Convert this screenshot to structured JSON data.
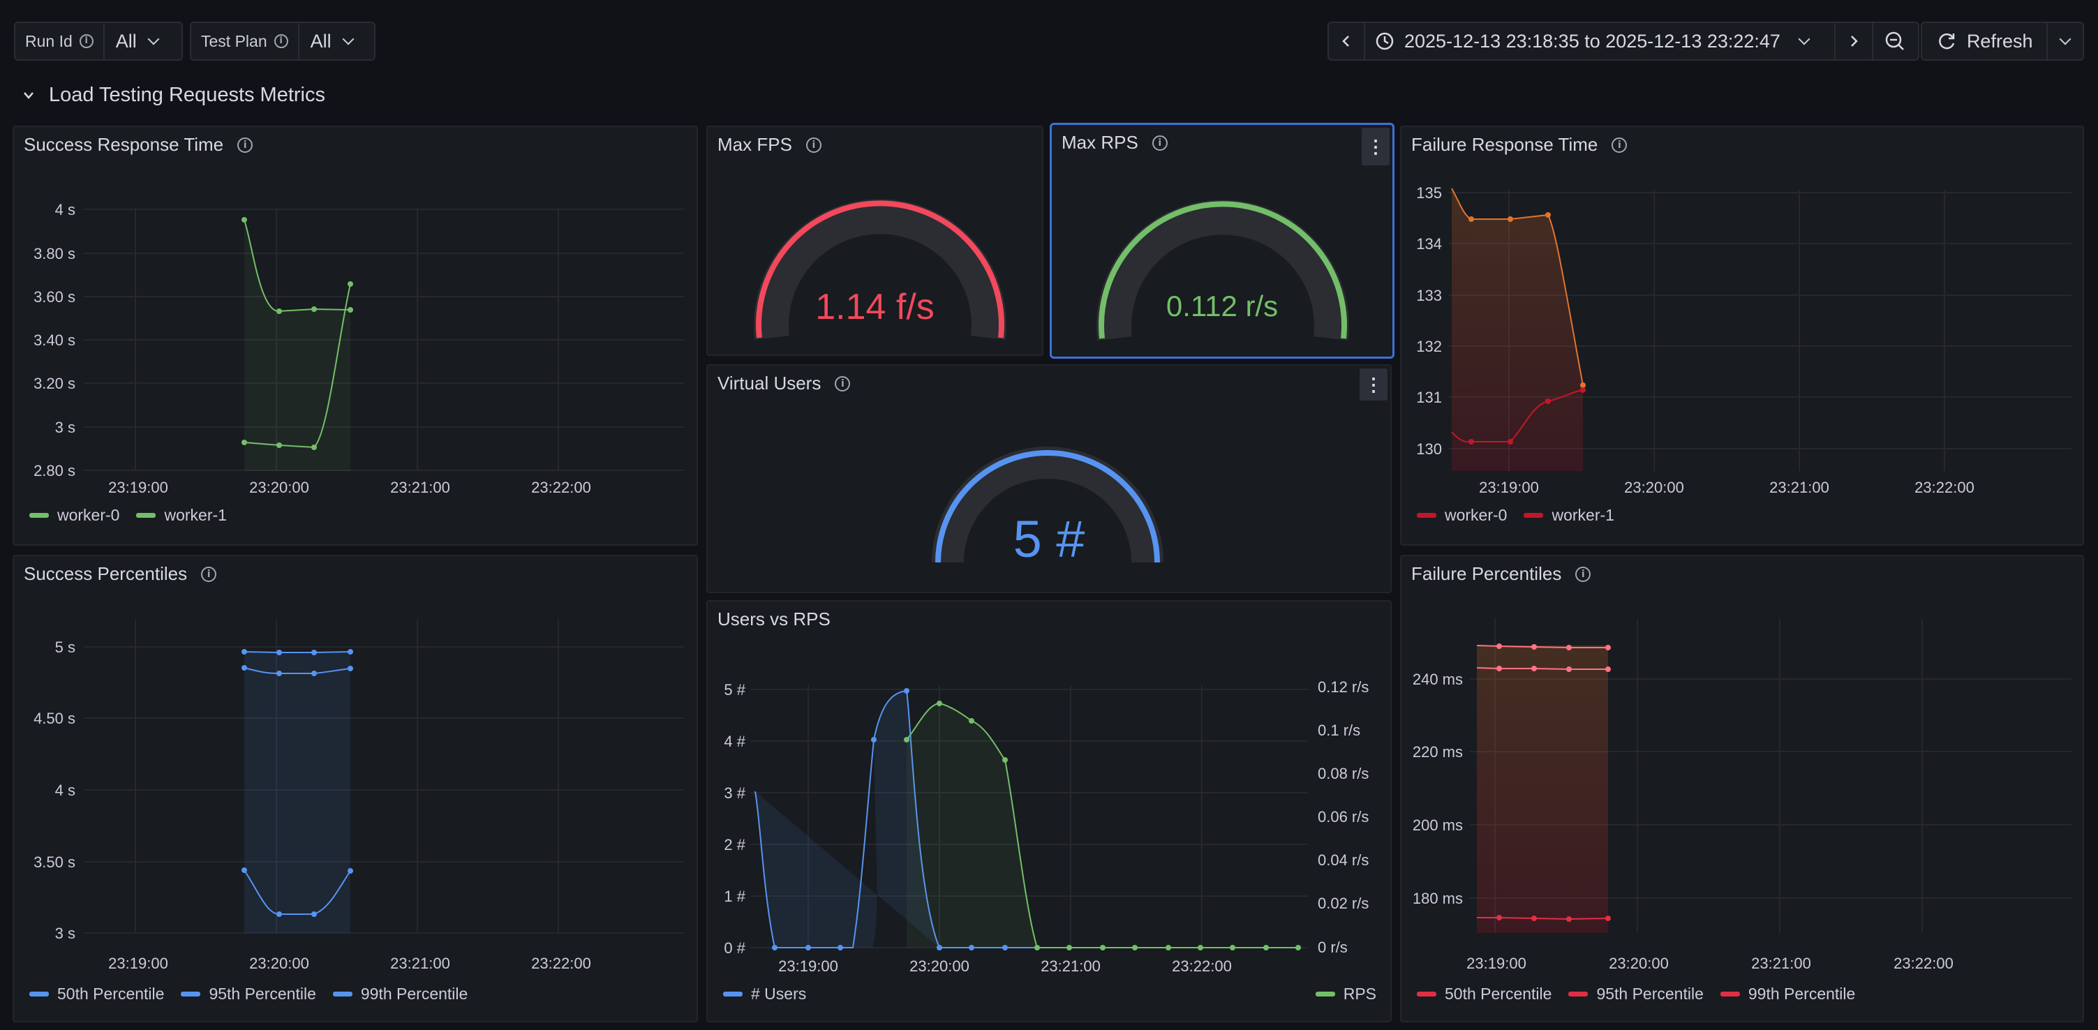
{
  "variables": {
    "run_id": {
      "label": "Run Id",
      "value": "All"
    },
    "test_plan": {
      "label": "Test Plan",
      "value": "All"
    }
  },
  "time_picker": {
    "range": "2025-12-13 23:18:35 to 2025-12-13 23:22:47"
  },
  "refresh": {
    "label": "Refresh"
  },
  "row_title": "Load Testing Requests Metrics",
  "icons": {
    "info": "info-icon",
    "chevron_down": "chevron-down-icon",
    "chevron_left": "chevron-left-icon",
    "chevron_right": "chevron-right-icon",
    "clock": "clock-icon",
    "zoom_out": "zoom-out-icon",
    "refresh": "refresh-icon",
    "menu": "kebab-menu-icon"
  },
  "colors": {
    "green": "#73bf69",
    "red": "#f2495c",
    "blue": "#5794f2",
    "orange": "#ff7383",
    "accent_border": "#3d71d9"
  },
  "panels": {
    "success_response_time": {
      "title": "Success Response Time",
      "y_ticks": [
        "4 s",
        "3.80 s",
        "3.60 s",
        "3.40 s",
        "3.20 s",
        "3 s",
        "2.80 s"
      ],
      "x_ticks": [
        "23:19:00",
        "23:20:00",
        "23:21:00",
        "23:22:00"
      ],
      "legend": [
        "worker-0",
        "worker-1"
      ]
    },
    "max_fps": {
      "title": "Max FPS",
      "value": "1.14 f/s",
      "fraction": 1.0
    },
    "max_rps": {
      "title": "Max RPS",
      "value": "0.112 r/s",
      "fraction": 1.0
    },
    "virtual_users": {
      "title": "Virtual Users",
      "value": "5 #",
      "fraction": 1.0
    },
    "failure_response_time": {
      "title": "Failure Response Time",
      "y_ticks": [
        "135",
        "134",
        "133",
        "132",
        "131",
        "130"
      ],
      "x_ticks": [
        "23:19:00",
        "23:20:00",
        "23:21:00",
        "23:22:00"
      ],
      "legend": [
        "worker-0",
        "worker-1"
      ]
    },
    "success_percentiles": {
      "title": "Success Percentiles",
      "y_ticks": [
        "5 s",
        "4.50 s",
        "4 s",
        "3.50 s",
        "3 s"
      ],
      "x_ticks": [
        "23:19:00",
        "23:20:00",
        "23:21:00",
        "23:22:00"
      ],
      "legend": [
        "50th Percentile",
        "95th Percentile",
        "99th Percentile"
      ]
    },
    "users_vs_rps": {
      "title": "Users vs RPS",
      "y_left_ticks": [
        "5 #",
        "4 #",
        "3 #",
        "2 #",
        "1 #",
        "0 #"
      ],
      "y_right_ticks": [
        "0.12 r/s",
        "0.1 r/s",
        "0.08 r/s",
        "0.06 r/s",
        "0.04 r/s",
        "0.02 r/s",
        "0 r/s"
      ],
      "x_ticks": [
        "23:19:00",
        "23:20:00",
        "23:21:00",
        "23:22:00"
      ],
      "legend_left": "# Users",
      "legend_right": "RPS"
    },
    "failure_percentiles": {
      "title": "Failure Percentiles",
      "y_ticks": [
        "240 ms",
        "220 ms",
        "200 ms",
        "180 ms"
      ],
      "x_ticks": [
        "23:19:00",
        "23:20:00",
        "23:21:00",
        "23:22:00"
      ],
      "legend": [
        "50th Percentile",
        "95th Percentile",
        "99th Percentile"
      ]
    }
  }
}
